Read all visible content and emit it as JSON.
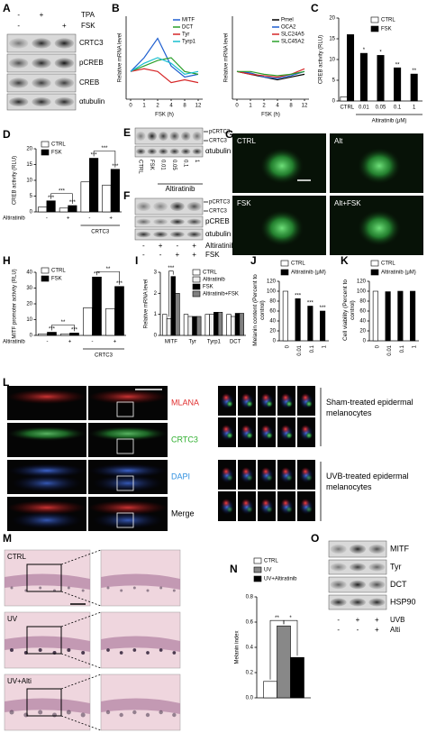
{
  "panel_labels": [
    "A",
    "B",
    "C",
    "D",
    "E",
    "F",
    "G",
    "H",
    "I",
    "J",
    "K",
    "L",
    "M",
    "N",
    "O"
  ],
  "blot_a": {
    "treatments": [
      {
        "name": "TPA",
        "signs": [
          "-",
          "+",
          null
        ]
      },
      {
        "name": "FSK",
        "signs": [
          "-",
          null,
          "+"
        ]
      }
    ],
    "bands": [
      "CRTC3",
      "pCREB",
      "CREB",
      "αtubulin"
    ]
  },
  "blot_e": {
    "bands": [
      "pCRTC3",
      "CRTC3",
      "αtubulin"
    ],
    "lanes": [
      "CTRL",
      "FSK",
      "0.01",
      "0.05",
      "0.1",
      "1"
    ],
    "treatment": "Altiratinib"
  },
  "blot_f": {
    "bands": [
      "pCRTC3",
      "CRTC3",
      "pCREB",
      "αtubulin"
    ],
    "treatments": [
      {
        "name": "Altiratinib",
        "signs": [
          "-",
          "+",
          "-",
          "+"
        ]
      },
      {
        "name": "FSK",
        "signs": [
          "-",
          "-",
          "+",
          "+"
        ]
      }
    ]
  },
  "images_g": [
    "CTRL",
    "Alt",
    "FSK",
    "Alt+FSK"
  ],
  "images_l": {
    "channels": [
      "MLANA",
      "CRTC3",
      "DAPI",
      "Merge"
    ],
    "groups": [
      "Sham-treated epidermal melanocytes",
      "UVB-treated epidermal melanocytes"
    ]
  },
  "images_m": [
    "CTRL",
    "UV",
    "UV+Alti"
  ],
  "blot_o": {
    "bands": [
      "MITF",
      "Tyr",
      "DCT",
      "HSP90"
    ],
    "treatments": [
      {
        "name": "UVB",
        "signs": [
          "-",
          "+",
          "+"
        ]
      },
      {
        "name": "Alti",
        "signs": [
          "-",
          "-",
          "+"
        ]
      }
    ]
  },
  "chart_data": [
    {
      "type": "line",
      "y_label": "Relative mRNA level",
      "x_label": "FSK (h)",
      "categories": [
        "0",
        "1",
        "2",
        "4",
        "8",
        "12"
      ],
      "ylim": [
        0,
        3
      ],
      "series": [
        {
          "name": "MITF",
          "color": "#1f5fd0",
          "values": [
            1,
            1.5,
            2.2,
            1.2,
            0.8,
            0.9
          ]
        },
        {
          "name": "DCT",
          "color": "#2aa02a",
          "values": [
            1,
            1.2,
            1.4,
            1.5,
            1.0,
            0.9
          ]
        },
        {
          "name": "Tyr",
          "color": "#d62728",
          "values": [
            1,
            1.1,
            1.0,
            0.6,
            0.7,
            0.6
          ]
        },
        {
          "name": "Tyrp1",
          "color": "#17becf",
          "values": [
            1,
            1.3,
            1.5,
            1.3,
            0.9,
            1.0
          ]
        }
      ]
    },
    {
      "type": "line",
      "y_label": "Relative mRNA level",
      "x_label": "FSK (h)",
      "categories": [
        "0",
        "1",
        "2",
        "4",
        "8",
        "12"
      ],
      "ylim": [
        0,
        3
      ],
      "series": [
        {
          "name": "Pmel",
          "color": "#000000",
          "values": [
            1,
            0.9,
            0.8,
            0.7,
            0.8,
            0.9
          ]
        },
        {
          "name": "OCA2",
          "color": "#1f5fd0",
          "values": [
            1,
            0.95,
            0.8,
            0.75,
            0.85,
            1.0
          ]
        },
        {
          "name": "SLC24A5",
          "color": "#d62728",
          "values": [
            1,
            0.9,
            0.85,
            0.8,
            0.9,
            1.1
          ]
        },
        {
          "name": "SLC45A2",
          "color": "#2aa02a",
          "values": [
            1,
            1.0,
            0.9,
            0.85,
            0.9,
            1.0
          ]
        }
      ]
    },
    {
      "type": "bar",
      "y_label": "CREB activity (RLU)",
      "x_label": "Altiratinib (μM)",
      "categories": [
        "CTRL",
        "0.01",
        "0.05",
        "0.1",
        "1"
      ],
      "ylim": [
        0,
        20
      ],
      "yticks": [
        0,
        5,
        10,
        15,
        20
      ],
      "series": [
        {
          "name": "CTRL",
          "color": "#ffffff",
          "values": [
            1,
            null,
            null,
            null,
            null
          ]
        },
        {
          "name": "FSK",
          "color": "#000000",
          "values": [
            16,
            11.5,
            11,
            8,
            6.5
          ],
          "significance": [
            null,
            "*",
            "*",
            "**",
            "**"
          ]
        }
      ]
    },
    {
      "type": "bar",
      "y_label": "CREB activity (RLU)",
      "x_label": "Altiratinib",
      "group_label": "CRTC3",
      "categories": [
        "-",
        "+",
        "-",
        "+"
      ],
      "ylim": [
        0,
        20
      ],
      "yticks": [
        0,
        5,
        10,
        15,
        20
      ],
      "brackets": [
        "***",
        "***"
      ],
      "series": [
        {
          "name": "CTRL",
          "color": "#ffffff",
          "values": [
            1.5,
            1.2,
            9.5,
            8.5
          ]
        },
        {
          "name": "FSK",
          "color": "#000000",
          "values": [
            3.5,
            2,
            17,
            13.5
          ],
          "significance": [
            "***",
            "***",
            "***",
            "***"
          ]
        }
      ]
    },
    {
      "type": "bar",
      "y_label": "MITF promoter activity (RLU)",
      "x_label": "Altiratinib",
      "group_label": "CRTC3",
      "categories": [
        "-",
        "+",
        "-",
        "+"
      ],
      "ylim": [
        0,
        40
      ],
      "yticks": [
        0,
        10,
        20,
        30,
        40
      ],
      "brackets": [
        "**",
        "**"
      ],
      "series": [
        {
          "name": "CTRL",
          "color": "#ffffff",
          "values": [
            1,
            1,
            17.5,
            17
          ]
        },
        {
          "name": "FSK",
          "color": "#000000",
          "values": [
            2,
            1.5,
            37,
            31
          ],
          "significance": [
            "***",
            "***",
            "***",
            "***"
          ]
        }
      ]
    },
    {
      "type": "bar",
      "y_label": "Relative mRNA level",
      "categories": [
        "MITF",
        "Tyr",
        "Tyrp1",
        "DCT"
      ],
      "ylim": [
        0,
        3
      ],
      "yticks": [
        0,
        1,
        2,
        3
      ],
      "brackets": [
        "***"
      ],
      "series": [
        {
          "name": "CTRL",
          "color": "#ffffff",
          "values": [
            1,
            1,
            1,
            1
          ]
        },
        {
          "name": "Altiratinib",
          "color": "#eeeeee",
          "values": [
            0.8,
            0.9,
            1.0,
            0.9
          ]
        },
        {
          "name": "FSK",
          "color": "#000000",
          "values": [
            2.8,
            0.9,
            1.1,
            1.05
          ]
        },
        {
          "name": "Altiratinib+FSK",
          "color": "#808080",
          "values": [
            2.0,
            0.9,
            1.1,
            1.05
          ]
        }
      ]
    },
    {
      "type": "bar",
      "y_label": "Melanin content (Percent to control)",
      "categories": [
        "0",
        "0.01",
        "0.1",
        "1"
      ],
      "ylim": [
        0,
        120
      ],
      "yticks": [
        0,
        20,
        40,
        60,
        80,
        100,
        120
      ],
      "series": [
        {
          "name": "CTRL",
          "color": "#ffffff",
          "values": [
            100,
            null,
            null,
            null
          ]
        },
        {
          "name": "Altiratinib (μM)",
          "color": "#000000",
          "values": [
            null,
            85,
            70,
            60
          ],
          "significance": [
            null,
            "***",
            "***",
            "***"
          ]
        }
      ]
    },
    {
      "type": "bar",
      "y_label": "Cell viability (Percent to control)",
      "categories": [
        "0",
        "0.01",
        "0.1",
        "1"
      ],
      "ylim": [
        0,
        120
      ],
      "yticks": [
        0,
        20,
        40,
        60,
        80,
        100,
        120
      ],
      "series": [
        {
          "name": "CTRL",
          "color": "#ffffff",
          "values": [
            100,
            null,
            null,
            null
          ]
        },
        {
          "name": "Altiratinib (μM)",
          "color": "#000000",
          "values": [
            null,
            99,
            100,
            100
          ]
        }
      ]
    },
    {
      "type": "bar",
      "y_label": "Melanin index",
      "categories": [
        null
      ],
      "ylim": [
        0,
        0.8
      ],
      "yticks": [
        {
          "value": 0,
          "label": "0.0"
        },
        0.2,
        0.4,
        0.6,
        0.8
      ],
      "brackets": [
        "**",
        "*"
      ],
      "series": [
        {
          "name": "CTRL",
          "color": "#ffffff",
          "values": [
            0.13
          ]
        },
        {
          "name": "UV",
          "color": "#888888",
          "values": [
            0.57
          ]
        },
        {
          "name": "UV+Altiratinib",
          "color": "#000000",
          "values": [
            0.32
          ]
        }
      ]
    }
  ]
}
